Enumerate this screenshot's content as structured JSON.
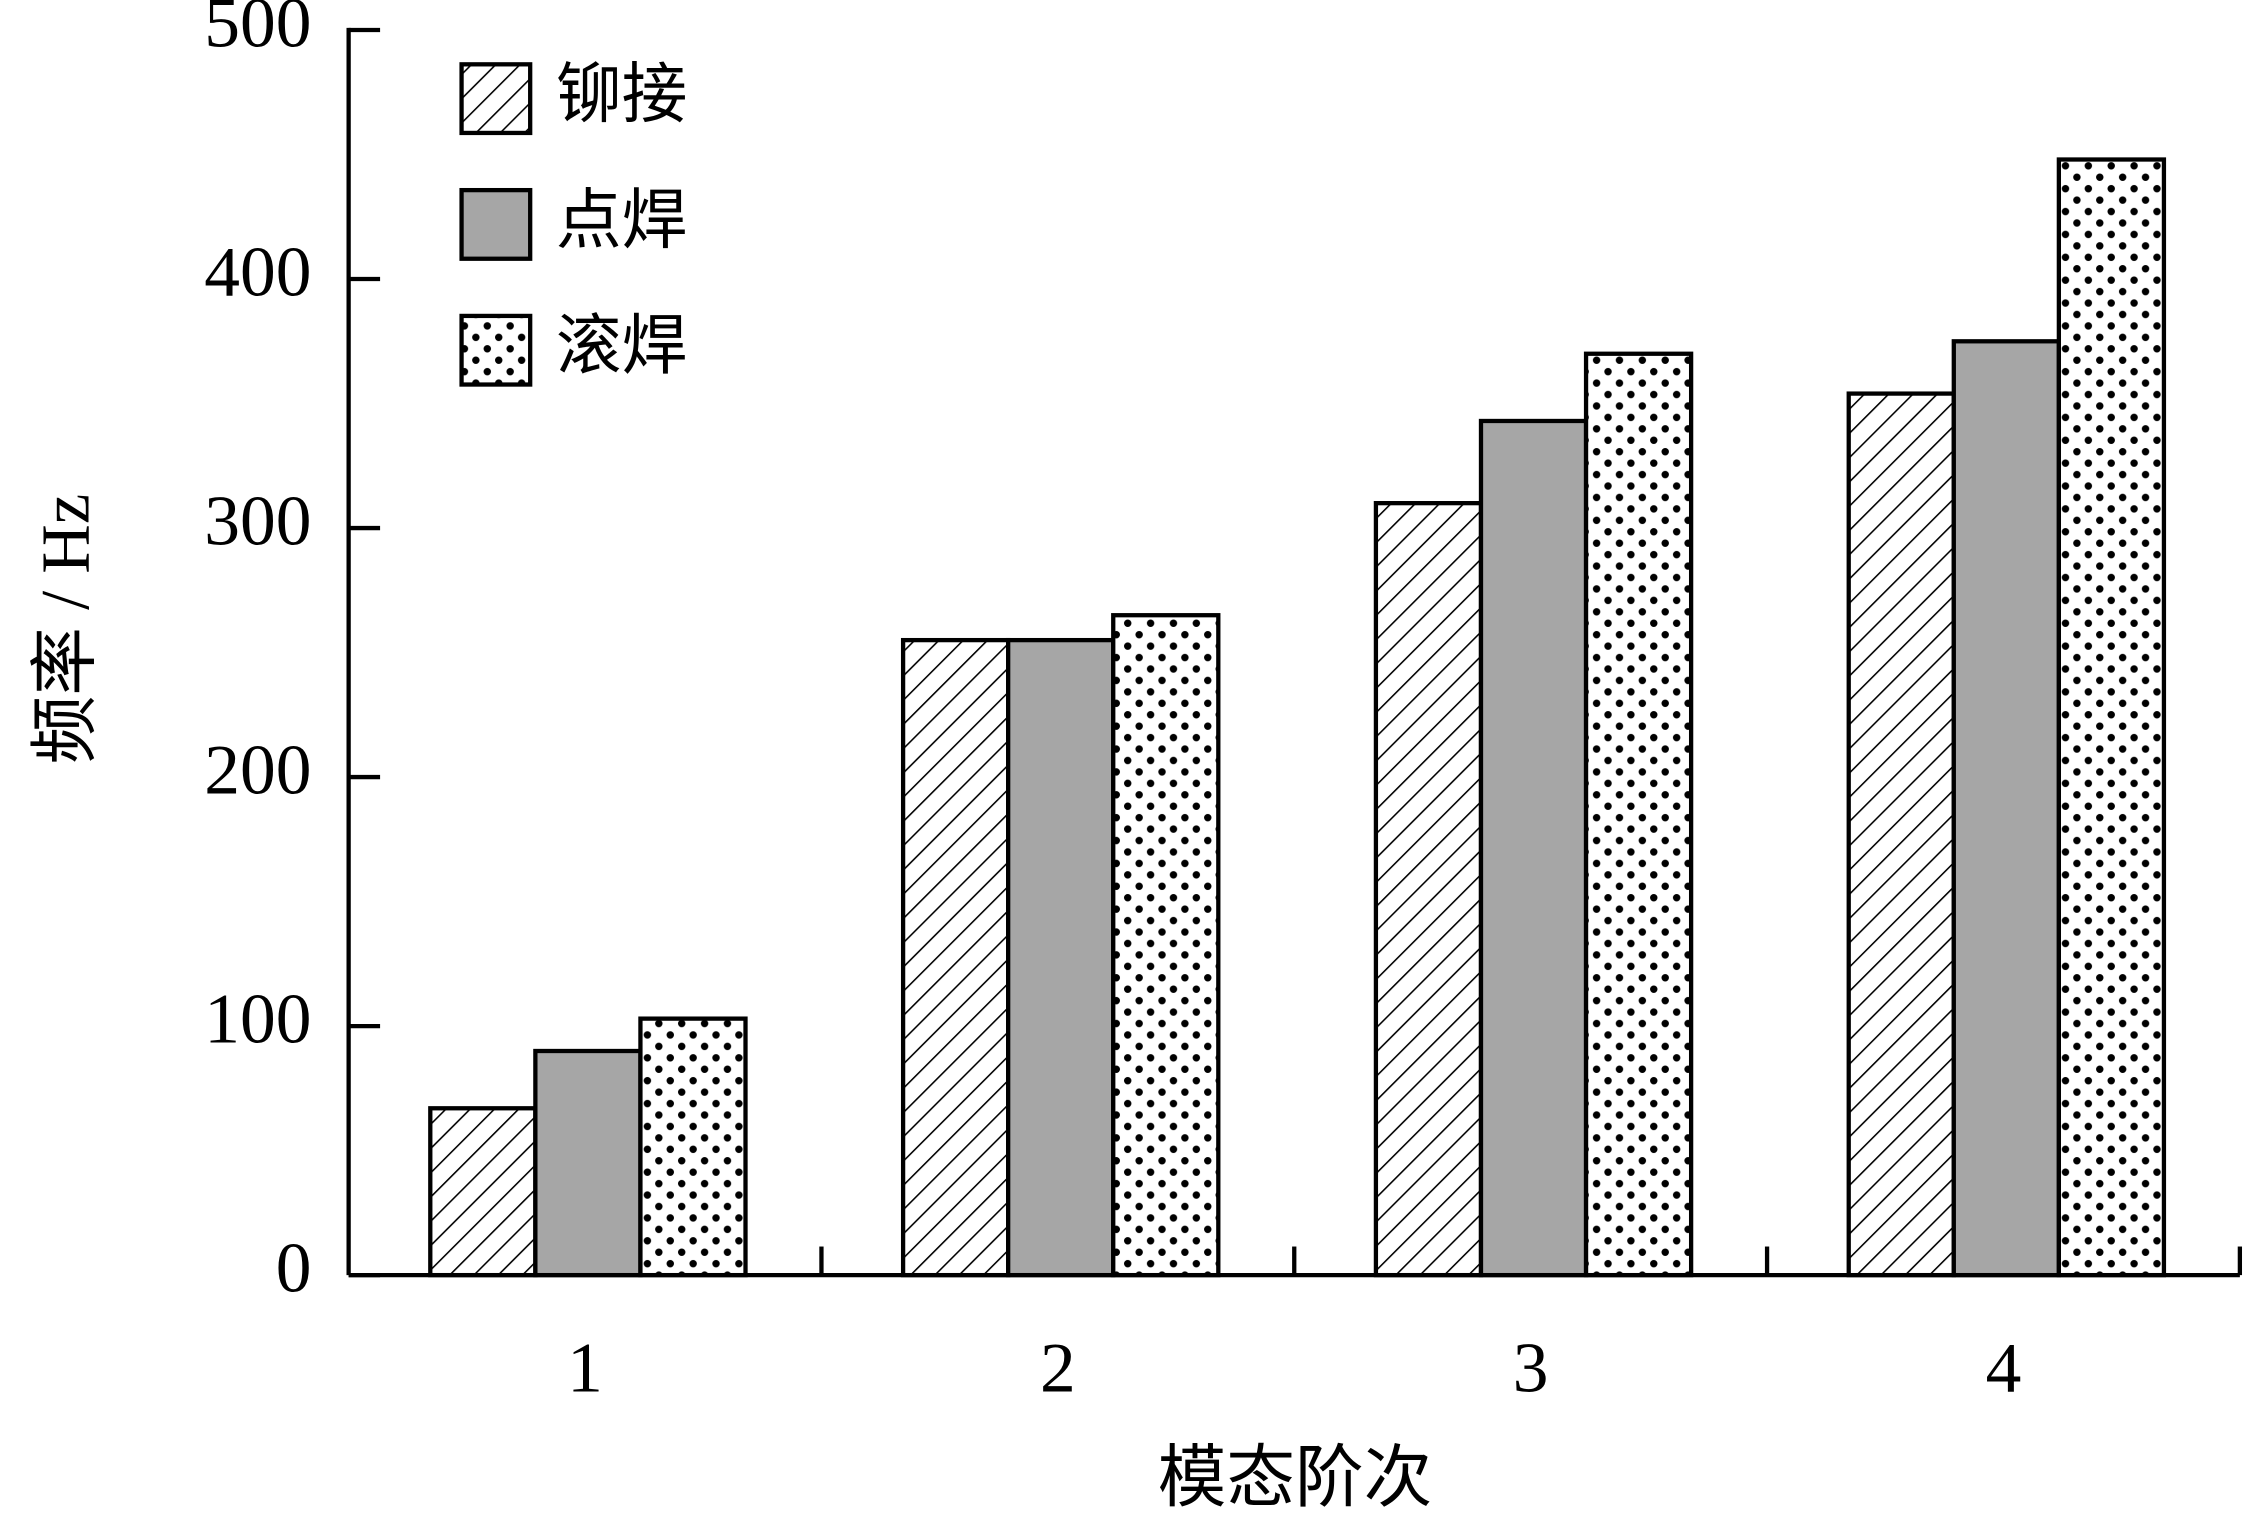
{
  "chart_data": {
    "type": "bar",
    "x_label": "模态阶次",
    "y_label": "频率 / Hz",
    "categories": [
      "1",
      "2",
      "3",
      "4"
    ],
    "series": [
      {
        "name": "铆接",
        "color": "#ffffff",
        "pattern": "hatch",
        "values": [
          67,
          255,
          310,
          354
        ]
      },
      {
        "name": "点焊",
        "color": "#a6a6a6",
        "pattern": "solid",
        "values": [
          90,
          255,
          343,
          375
        ]
      },
      {
        "name": "滚焊",
        "color": "#ffffff",
        "pattern": "dots",
        "values": [
          103,
          265,
          370,
          448
        ]
      }
    ],
    "ylim": [
      0,
      500
    ],
    "yticks": [
      0,
      100,
      200,
      300,
      400,
      500
    ],
    "legend": "upper left"
  }
}
